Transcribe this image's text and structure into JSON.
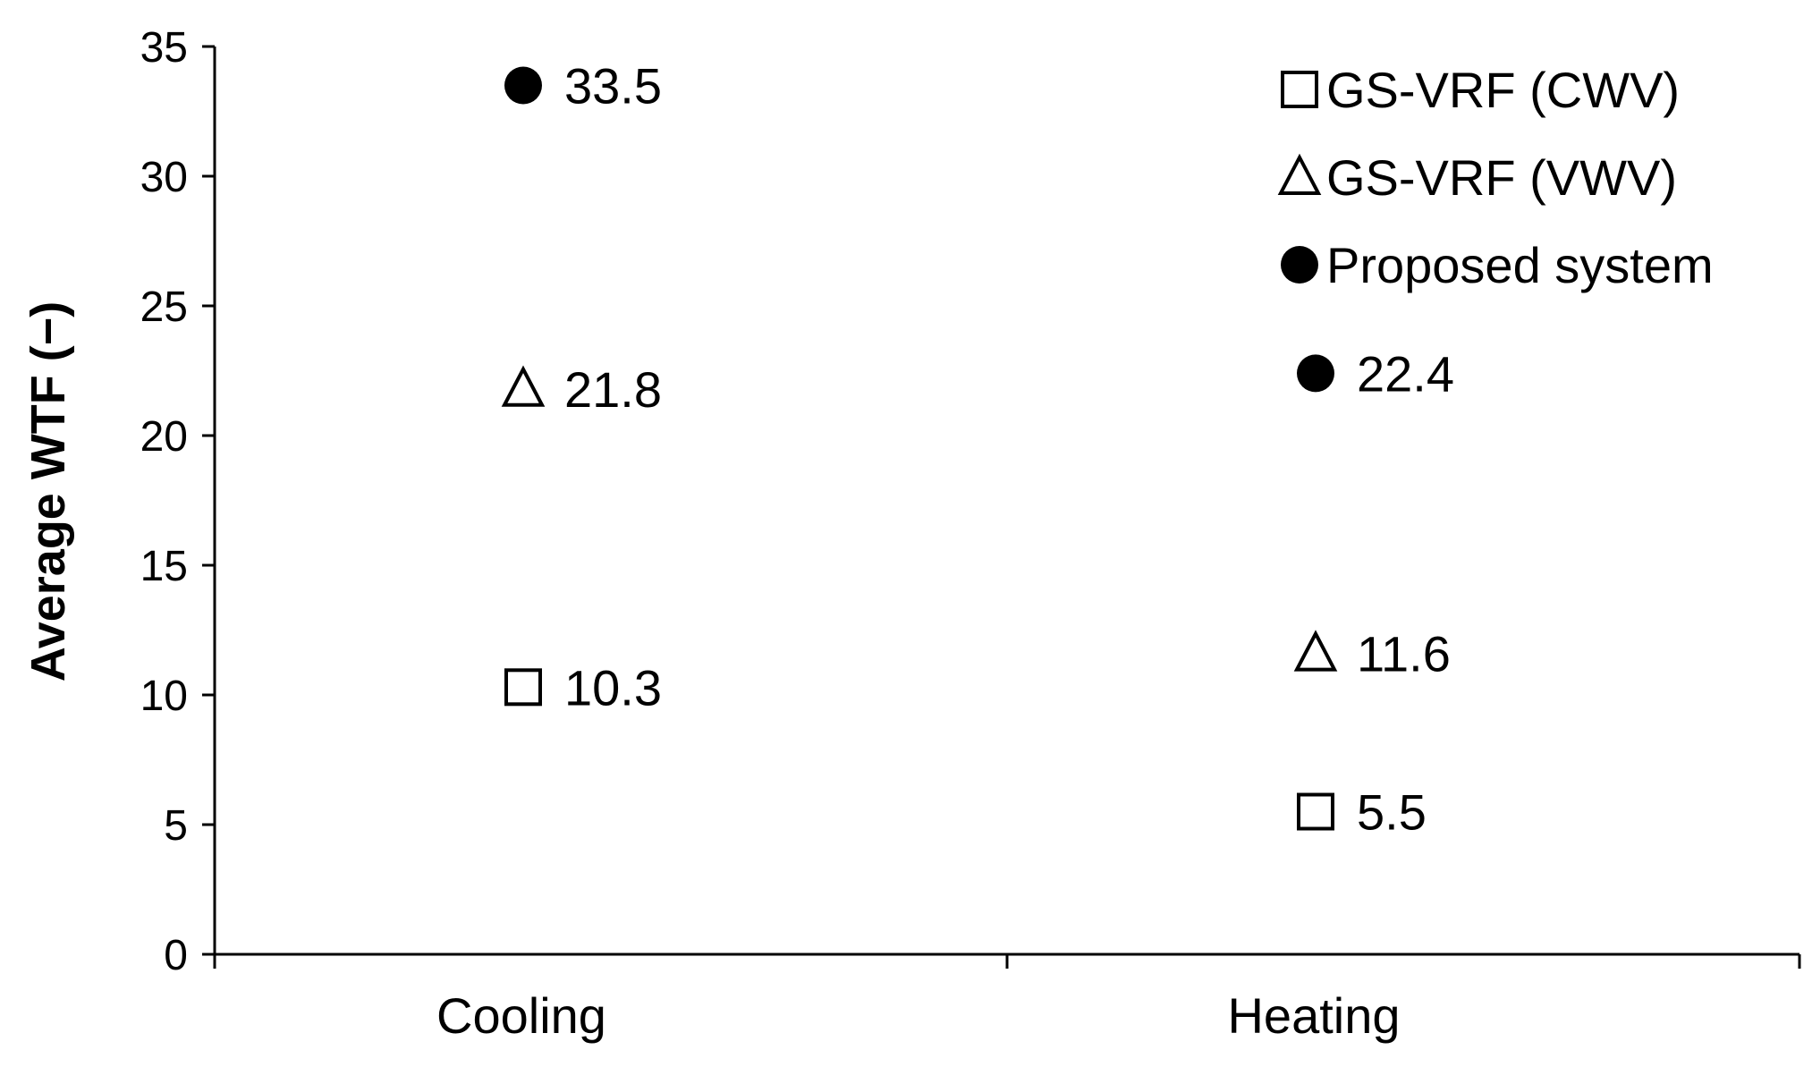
{
  "chart_data": {
    "type": "scatter",
    "ylabel": "Average WTF (−)",
    "xlabel": "",
    "title": "",
    "ylim": [
      0,
      35
    ],
    "yticks": [
      0,
      5,
      10,
      15,
      20,
      25,
      30,
      35
    ],
    "ytick_labels": [
      "0",
      "5",
      "10",
      "15",
      "20",
      "25",
      "30",
      "35"
    ],
    "categories": [
      "Cooling",
      "Heating"
    ],
    "grid": false,
    "legend_position": "top-right",
    "series": [
      {
        "name": "GS-VRF (CWV)",
        "marker": "square-open",
        "color": "#000000",
        "values": [
          10.3,
          5.5
        ],
        "labels": [
          "10.3",
          "5.5"
        ]
      },
      {
        "name": "GS-VRF (VWV)",
        "marker": "triangle-open",
        "color": "#000000",
        "values": [
          21.8,
          11.6
        ],
        "labels": [
          "21.8",
          "11.6"
        ]
      },
      {
        "name": "Proposed system",
        "marker": "circle-filled",
        "color": "#000000",
        "values": [
          33.5,
          22.4
        ],
        "labels": [
          "33.5",
          "22.4"
        ]
      }
    ]
  }
}
